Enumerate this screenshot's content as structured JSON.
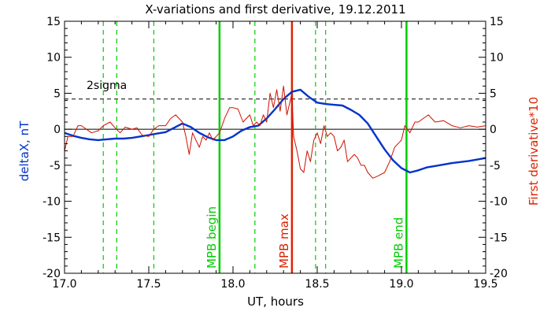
{
  "chart_data": {
    "type": "line",
    "title": "X-variations and first derivative, 19.12.2011",
    "xlabel": "UT, hours",
    "ylabel_left": "deltaX, nT",
    "ylabel_right": "First derivative*10",
    "xlim": [
      17.0,
      19.5
    ],
    "ylim": [
      -20,
      15
    ],
    "x_ticks": [
      17.0,
      17.5,
      18.0,
      18.5,
      19.0,
      19.5
    ],
    "x_tick_labels": [
      "17.0",
      "17.5",
      "18.0",
      "18.5",
      "19.0",
      "19.5"
    ],
    "y_ticks": [
      -20,
      -15,
      -10,
      -5,
      0,
      5,
      10,
      15
    ],
    "y_tick_labels": [
      "-20",
      "-15",
      "-10",
      "-5",
      "0",
      "5",
      "10",
      "15"
    ],
    "grid": false,
    "sigma_line": {
      "label": "2sigma",
      "value": 4.2
    },
    "vertical_lines": [
      {
        "x": 17.23,
        "style": "dashed",
        "color": "#00cc00",
        "label": ""
      },
      {
        "x": 17.31,
        "style": "dashed",
        "color": "#00cc00",
        "label": ""
      },
      {
        "x": 17.53,
        "style": "dashed",
        "color": "#00cc00",
        "label": ""
      },
      {
        "x": 17.92,
        "style": "solid",
        "color": "#00cc00",
        "label": "MPB begin"
      },
      {
        "x": 18.13,
        "style": "dashed",
        "color": "#00cc00",
        "label": ""
      },
      {
        "x": 18.35,
        "style": "solid",
        "color": "#dd2200",
        "label": "MPB max"
      },
      {
        "x": 18.49,
        "style": "dashed",
        "color": "#00cc00",
        "label": ""
      },
      {
        "x": 18.55,
        "style": "dashed",
        "color": "#00cc00",
        "label": ""
      },
      {
        "x": 19.03,
        "style": "solid",
        "color": "#00cc00",
        "label": "MPB end"
      }
    ],
    "series": [
      {
        "color": "#0033cc",
        "x": [
          17.0,
          17.05,
          17.1,
          17.15,
          17.2,
          17.25,
          17.3,
          17.35,
          17.4,
          17.45,
          17.5,
          17.55,
          17.6,
          17.65,
          17.7,
          17.75,
          17.8,
          17.85,
          17.9,
          17.95,
          18.0,
          18.05,
          18.1,
          18.15,
          18.2,
          18.25,
          18.3,
          18.35,
          18.4,
          18.45,
          18.5,
          18.55,
          18.6,
          18.65,
          18.7,
          18.75,
          18.8,
          18.85,
          18.9,
          18.95,
          19.0,
          19.05,
          19.1,
          19.15,
          19.2,
          19.3,
          19.4,
          19.5
        ],
        "values": [
          -0.5,
          -0.9,
          -1.2,
          -1.4,
          -1.5,
          -1.4,
          -1.3,
          -1.3,
          -1.2,
          -1.0,
          -0.8,
          -0.6,
          -0.4,
          0.2,
          0.8,
          0.3,
          -0.5,
          -1.1,
          -1.5,
          -1.5,
          -1.0,
          -0.2,
          0.3,
          0.5,
          1.5,
          2.8,
          4.2,
          5.2,
          5.5,
          4.5,
          3.7,
          3.5,
          3.4,
          3.3,
          2.7,
          2.0,
          0.8,
          -1.0,
          -2.8,
          -4.3,
          -5.4,
          -6.0,
          -5.7,
          -5.3,
          -5.1,
          -4.7,
          -4.4,
          -4.0
        ]
      },
      {
        "color": "#cc1100",
        "x": [
          17.0,
          17.02,
          17.05,
          17.08,
          17.1,
          17.13,
          17.16,
          17.2,
          17.23,
          17.27,
          17.3,
          17.33,
          17.36,
          17.4,
          17.43,
          17.46,
          17.5,
          17.53,
          17.56,
          17.6,
          17.63,
          17.66,
          17.7,
          17.72,
          17.74,
          17.76,
          17.78,
          17.8,
          17.82,
          17.84,
          17.86,
          17.88,
          17.9,
          17.92,
          17.95,
          17.98,
          18.0,
          18.03,
          18.06,
          18.08,
          18.1,
          18.12,
          18.14,
          18.16,
          18.18,
          18.2,
          18.22,
          18.24,
          18.26,
          18.28,
          18.3,
          18.32,
          18.34,
          18.35,
          18.36,
          18.38,
          18.4,
          18.42,
          18.44,
          18.46,
          18.48,
          18.5,
          18.52,
          18.54,
          18.56,
          18.58,
          18.6,
          18.62,
          18.64,
          18.66,
          18.68,
          18.7,
          18.72,
          18.74,
          18.76,
          18.78,
          18.8,
          18.83,
          18.86,
          18.9,
          18.93,
          18.96,
          19.0,
          19.02,
          19.05,
          19.08,
          19.1,
          19.13,
          19.16,
          19.2,
          19.25,
          19.3,
          19.35,
          19.4,
          19.45,
          19.5
        ],
        "values": [
          -3.0,
          -1.0,
          -1.0,
          0.5,
          0.5,
          0.0,
          -0.5,
          -0.2,
          0.5,
          1.0,
          0.2,
          -0.5,
          0.3,
          0.0,
          0.2,
          -0.8,
          -1.0,
          0.0,
          0.5,
          0.5,
          1.5,
          2.0,
          1.0,
          -1.0,
          -3.5,
          -0.5,
          -1.5,
          -2.5,
          -1.0,
          -1.5,
          -0.5,
          -1.5,
          -1.0,
          -0.5,
          1.5,
          3.0,
          3.0,
          2.8,
          1.0,
          1.5,
          2.0,
          0.5,
          1.0,
          0.5,
          2.0,
          1.0,
          5.0,
          3.0,
          5.5,
          2.5,
          6.0,
          2.0,
          4.0,
          5.0,
          -1.0,
          -3.0,
          -5.5,
          -6.0,
          -3.0,
          -4.5,
          -1.5,
          -0.5,
          -2.0,
          0.5,
          -1.0,
          -0.5,
          -1.0,
          -3.0,
          -2.5,
          -1.5,
          -4.5,
          -4.0,
          -3.5,
          -4.0,
          -5.0,
          -5.0,
          -6.0,
          -6.8,
          -6.5,
          -6.0,
          -4.5,
          -2.5,
          -1.5,
          0.5,
          -0.5,
          1.0,
          1.0,
          1.5,
          2.0,
          1.0,
          1.2,
          0.5,
          0.2,
          0.5,
          0.3,
          0.5
        ]
      }
    ]
  }
}
